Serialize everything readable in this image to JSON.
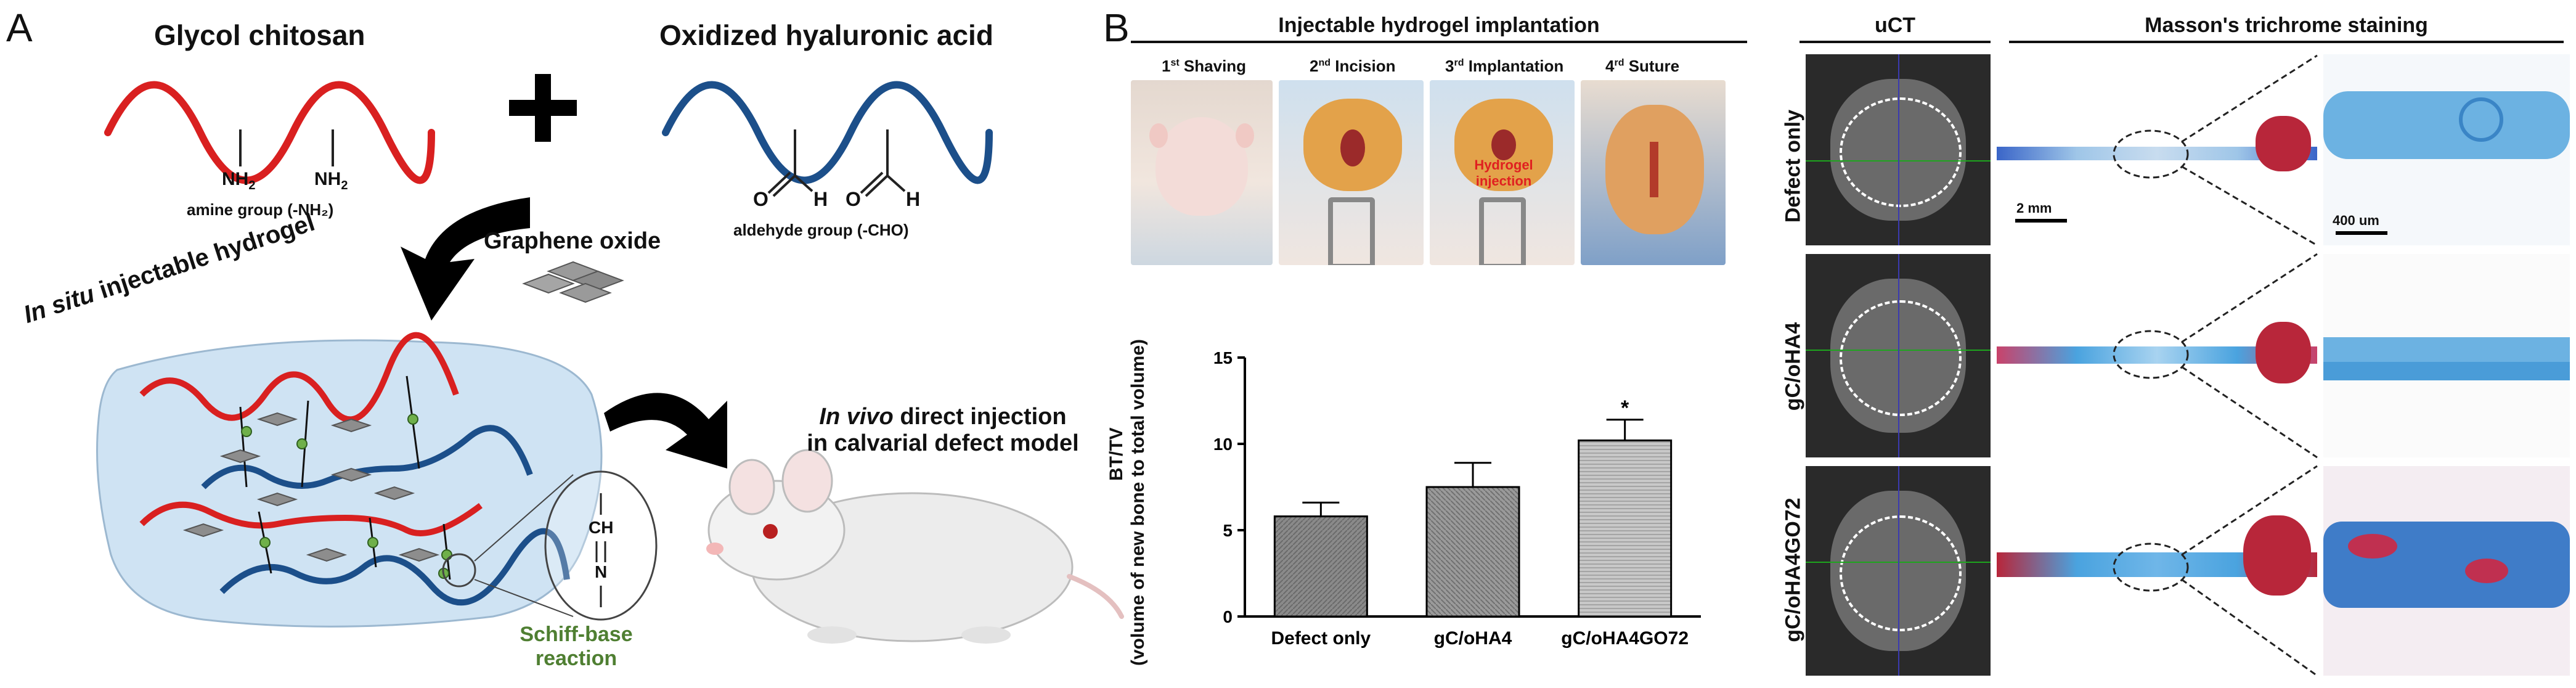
{
  "panelA": {
    "letter": "A",
    "glycol_title": "Glycol chitosan",
    "oha_title": "Oxidized hyaluronic acid",
    "plus": "+",
    "nh2_1": "NH",
    "nh2_1_sub": "2",
    "nh2_2": "NH",
    "nh2_2_sub": "2",
    "amine_label": "amine group (-NH₂)",
    "aldehyde_label": "aldehyde group (-CHO)",
    "o1": "O",
    "o2": "O",
    "h1": "H",
    "h2": "H",
    "graphene_label": "Graphene oxide",
    "insitu_italic": "In situ",
    "insitu_rest": " injectable hydrogel",
    "invivo_italic": "In vivo",
    "invivo_rest": " direct injection",
    "invivo_line2": "in calvarial defect model",
    "schiff_line1": "Schiff-base",
    "schiff_line2": "reaction",
    "ch": "CH",
    "n": "N",
    "colors": {
      "red": "#d92020",
      "blue": "#1c4f8a",
      "green": "#4f7f32",
      "hydrogel": "#cfe3f3"
    }
  },
  "panelB": {
    "letter": "B",
    "implant_title": "Injectable hydrogel implantation",
    "steps": [
      {
        "num": "1",
        "sup": "st",
        "text": " Shaving"
      },
      {
        "num": "2",
        "sup": "nd",
        "text": " Incision"
      },
      {
        "num": "3",
        "sup": "rd",
        "text": " Implantation"
      },
      {
        "num": "4",
        "sup": "rd",
        "text": " Suture"
      }
    ],
    "hydrogel_injection_line1": "Hydrogel",
    "hydrogel_injection_line2": "injection"
  },
  "chart_data": {
    "type": "bar",
    "categories": [
      "Defect only",
      "gC/oHA4",
      "gC/oHA4GO72"
    ],
    "values": [
      5.8,
      7.5,
      10.2
    ],
    "errors": [
      0.8,
      1.4,
      1.2
    ],
    "significance": [
      "",
      "",
      "*"
    ],
    "ylabel_line1": "BT/TV",
    "ylabel_line2": "(volume of new bone to total volume)",
    "ylim": [
      0,
      15
    ],
    "yticks": [
      "0",
      "5",
      "10",
      "15"
    ],
    "ytick_values": [
      0,
      5,
      10,
      15
    ],
    "bar_colors": [
      "#8a8a8a",
      "#9a9a9a",
      "#c8c8c8"
    ]
  },
  "right": {
    "uct_title": "uCT",
    "masson_title": "Masson's trichrome staining",
    "rows": [
      {
        "label": "Defect only"
      },
      {
        "label": "gC/oHA4"
      },
      {
        "label": "gC/oHA4GO72"
      }
    ],
    "scale1": "2 mm",
    "scale2": "400 um"
  }
}
